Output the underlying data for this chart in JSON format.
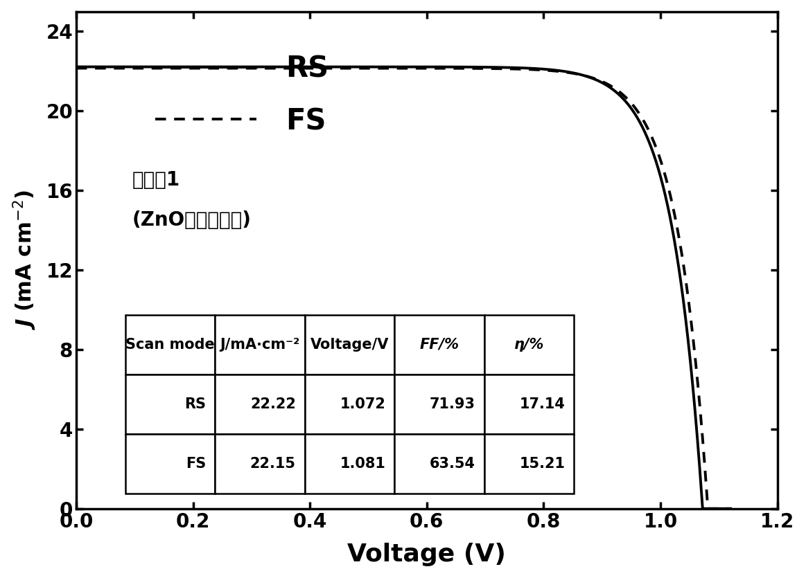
{
  "xlabel": "Voltage (V)",
  "xlim": [
    0.0,
    1.2
  ],
  "ylim": [
    0,
    25
  ],
  "yticks": [
    0,
    4,
    8,
    12,
    16,
    20,
    24
  ],
  "xticks": [
    0.0,
    0.2,
    0.4,
    0.6,
    0.8,
    1.0,
    1.2
  ],
  "rs_Jsc": 22.22,
  "rs_Voc": 1.072,
  "rs_FF": 0.7193,
  "fs_Jsc": 22.15,
  "fs_Voc": 1.081,
  "fs_FF": 0.6354,
  "annotation_line1": "实施例1",
  "annotation_line2": "(ZnO未硫化处理)",
  "table_headers": [
    "Scan mode",
    "J/mA·cm⁻²",
    "Voltage/V",
    "FF/%",
    "η/%"
  ],
  "table_row1": [
    "RS",
    "22.22",
    "1.072",
    "71.93",
    "17.14"
  ],
  "table_row2": [
    "FS",
    "22.15",
    "1.081",
    "63.54",
    "15.21"
  ],
  "line_color": "#000000",
  "background_color": "#ffffff",
  "legend_RS": "RS",
  "legend_FS": "FS"
}
